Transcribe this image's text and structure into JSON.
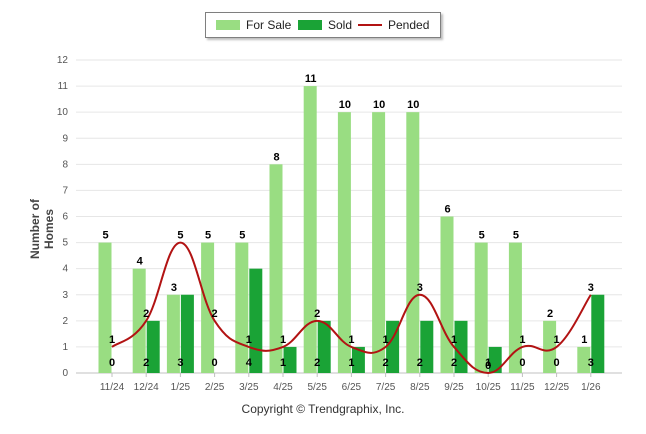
{
  "chart_data": {
    "type": "bar",
    "title": "",
    "xlabel": "",
    "ylabel": "Number of Homes",
    "ylim": [
      0,
      12
    ],
    "yticks": [
      "0",
      "1",
      "2",
      "3",
      "4",
      "5",
      "6",
      "7",
      "8",
      "9",
      "10",
      "11",
      "12"
    ],
    "categories": [
      "11/24",
      "12/24",
      "1/25",
      "2/25",
      "3/25",
      "4/25",
      "5/25",
      "6/25",
      "7/25",
      "8/25",
      "9/25",
      "10/25",
      "11/25",
      "12/25",
      "1/26"
    ],
    "series": [
      {
        "name": "For Sale",
        "kind": "bar",
        "color": "#99dd82",
        "values": [
          5,
          4,
          3,
          5,
          5,
          8,
          11,
          10,
          10,
          10,
          6,
          5,
          5,
          2,
          1
        ]
      },
      {
        "name": "Sold",
        "kind": "bar",
        "color": "#1aa336",
        "values": [
          0,
          2,
          3,
          0,
          4,
          1,
          2,
          1,
          2,
          2,
          2,
          1,
          0,
          0,
          3
        ]
      },
      {
        "name": "Pended",
        "kind": "line",
        "color": "#b21313",
        "values": [
          1,
          2,
          5,
          2,
          1,
          1,
          2,
          1,
          1,
          3,
          1,
          0,
          1,
          1,
          3
        ]
      }
    ],
    "legend": "top-center"
  },
  "legend": {
    "for_sale": "For Sale",
    "sold": "Sold",
    "pended": "Pended"
  },
  "footer": {
    "copyright": "Copyright © Trendgraphix, Inc."
  }
}
